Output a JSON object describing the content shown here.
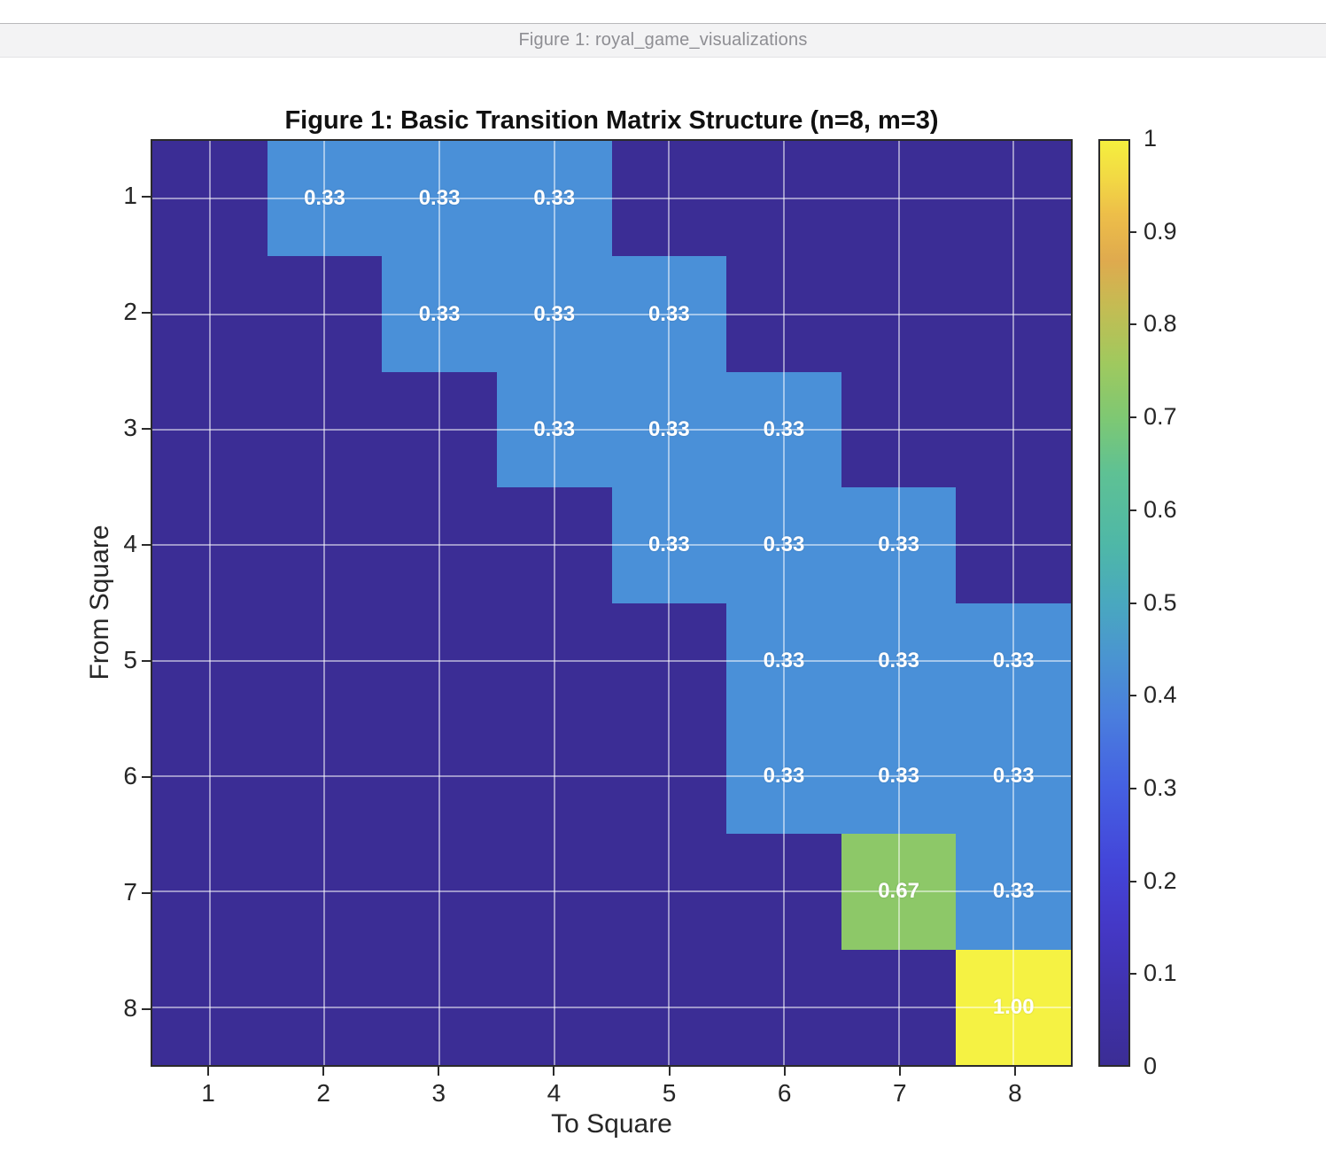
{
  "window": {
    "title": "Figure 1: royal_game_visualizations"
  },
  "chart_data": {
    "type": "heatmap",
    "title": "Figure 1: Basic Transition Matrix Structure (n=8, m=3)",
    "xlabel": "To Square",
    "ylabel": "From Square",
    "x_tick_labels": [
      "1",
      "2",
      "3",
      "4",
      "5",
      "6",
      "7",
      "8"
    ],
    "y_tick_labels": [
      "1",
      "2",
      "3",
      "4",
      "5",
      "6",
      "7",
      "8"
    ],
    "rows": "From Square 1-8 (top to bottom)",
    "cols": "To Square 1-8 (left to right)",
    "matrix": [
      [
        0,
        0.33,
        0.33,
        0.33,
        0,
        0,
        0,
        0
      ],
      [
        0,
        0,
        0.33,
        0.33,
        0.33,
        0,
        0,
        0
      ],
      [
        0,
        0,
        0,
        0.33,
        0.33,
        0.33,
        0,
        0
      ],
      [
        0,
        0,
        0,
        0,
        0.33,
        0.33,
        0.33,
        0
      ],
      [
        0,
        0,
        0,
        0,
        0,
        0.33,
        0.33,
        0.33
      ],
      [
        0,
        0,
        0,
        0,
        0,
        0.33,
        0.33,
        0.33
      ],
      [
        0,
        0,
        0,
        0,
        0,
        0,
        0.67,
        0.33
      ],
      [
        0,
        0,
        0,
        0,
        0,
        0,
        0,
        1
      ]
    ],
    "cell_label_format": "2-decimals, only non-zero cells labeled",
    "value_colors": {
      "0": "#3b2d95",
      "0.33": "#4a90d8",
      "0.67": "#8dc868",
      "1": "#f5f243"
    },
    "grid": true,
    "colorbar": {
      "min": 0,
      "max": 1,
      "ticks": [
        0,
        0.1,
        0.2,
        0.3,
        0.4,
        0.5,
        0.6,
        0.7,
        0.8,
        0.9,
        1
      ],
      "tick_labels": [
        "0",
        "0.1",
        "0.2",
        "0.3",
        "0.4",
        "0.5",
        "0.6",
        "0.7",
        "0.8",
        "0.9",
        "1"
      ],
      "position": "right",
      "colormap": "parula"
    }
  }
}
